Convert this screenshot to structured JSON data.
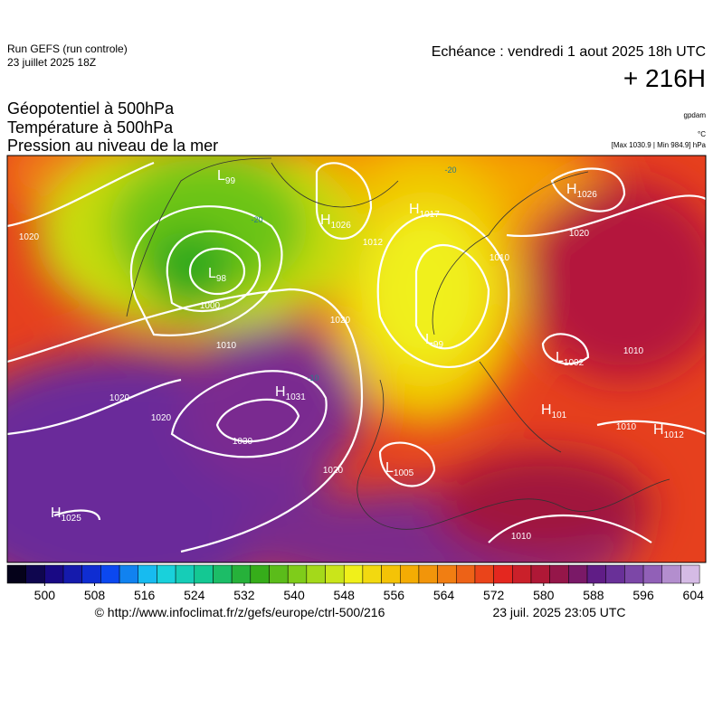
{
  "header": {
    "run": "Run GEFS (run controle)",
    "run_date": "23 juillet 2025 18Z",
    "echeance": "Echéance : vendredi 1 aout 2025 18h UTC",
    "lead": "+ 216H",
    "params": [
      "Géopotentiel à 500hPa",
      "Température à 500hPa",
      "Pression au niveau de la mer"
    ],
    "unit_geo": "gpdam",
    "unit_temp": "°C",
    "pressure_range": "[Max 1030.9 | Min 984.9] hPa"
  },
  "map": {
    "centers": [
      {
        "letter": "H",
        "value": "1026"
      },
      {
        "letter": "H",
        "value": "1017"
      },
      {
        "letter": "H",
        "value": "1026"
      },
      {
        "letter": "L",
        "value": "99"
      },
      {
        "letter": "L",
        "value": "98"
      },
      {
        "letter": "L",
        "value": "99"
      },
      {
        "letter": "L",
        "value": "1002"
      },
      {
        "letter": "H",
        "value": "1031"
      },
      {
        "letter": "H",
        "value": "101"
      },
      {
        "letter": "H",
        "value": "1012"
      },
      {
        "letter": "L",
        "value": "1005"
      },
      {
        "letter": "H",
        "value": "1025"
      }
    ],
    "isobar_labels": [
      "1020",
      "1020",
      "1012",
      "1010",
      "1010",
      "1000",
      "1010",
      "1020",
      "1020",
      "1020",
      "1030",
      "1020",
      "1010",
      "1010"
    ],
    "temp_labels": [
      "-20",
      "-20",
      "-10"
    ]
  },
  "colorbar": {
    "lim": [
      494,
      606
    ],
    "step": 3,
    "ticks": [
      500,
      508,
      516,
      524,
      532,
      540,
      548,
      556,
      564,
      572,
      580,
      588,
      596,
      604
    ],
    "colors": [
      "#000000",
      "#1a0a8c",
      "#0a3cf0",
      "#1ad4f0",
      "#14c890",
      "#2ca81a",
      "#8cd21a",
      "#f0f01a",
      "#f5b400",
      "#f07814",
      "#e6281e",
      "#a0143c",
      "#5a1e8c",
      "#8c5ab4",
      "#e6d2f0"
    ]
  },
  "footer": {
    "url": "© http://www.infoclimat.fr/z/gefs/europe/ctrl-500/216",
    "timestamp": "23 juil. 2025 23:05 UTC"
  }
}
